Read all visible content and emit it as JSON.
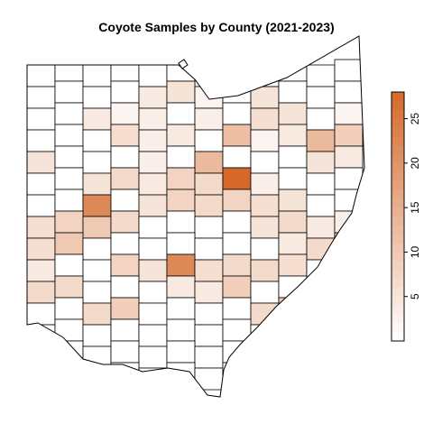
{
  "title": "Coyote Samples by County (2021-2023)",
  "legend": {
    "min": 0,
    "max": 28,
    "ticks": [
      5,
      10,
      15,
      20,
      25
    ],
    "tick_labels": [
      "5",
      "10",
      "15",
      "20",
      "25"
    ],
    "color_low": "#ffffff",
    "color_high": "#d4692a"
  },
  "counties": [
    {
      "value": 0
    },
    {
      "value": 0
    },
    {
      "value": 0
    },
    {
      "value": 0
    },
    {
      "value": 0
    },
    {
      "value": 0
    },
    {
      "value": 0
    },
    {
      "value": 0
    },
    {
      "value": 0
    },
    {
      "value": 0
    },
    {
      "value": 0
    },
    {
      "value": 0
    },
    {
      "value": 0
    },
    {
      "value": 0
    },
    {
      "value": 0
    },
    {
      "value": 0
    },
    {
      "value": 4
    },
    {
      "value": 5
    },
    {
      "value": 2
    },
    {
      "value": 0
    },
    {
      "value": 5
    },
    {
      "value": 0
    },
    {
      "value": 0
    },
    {
      "value": 0
    },
    {
      "value": 0
    },
    {
      "value": 0
    },
    {
      "value": 4
    },
    {
      "value": 2
    },
    {
      "value": 3
    },
    {
      "value": 0
    },
    {
      "value": 3
    },
    {
      "value": 0
    },
    {
      "value": 6
    },
    {
      "value": 5
    },
    {
      "value": 0
    },
    {
      "value": 2
    },
    {
      "value": 0
    },
    {
      "value": 0
    },
    {
      "value": 0
    },
    {
      "value": 6
    },
    {
      "value": 3
    },
    {
      "value": 4
    },
    {
      "value": 0
    },
    {
      "value": 12
    },
    {
      "value": 2
    },
    {
      "value": 4
    },
    {
      "value": 13
    },
    {
      "value": 9
    },
    {
      "value": 5
    },
    {
      "value": 0
    },
    {
      "value": 0
    },
    {
      "value": 0
    },
    {
      "value": 3
    },
    {
      "value": 0
    },
    {
      "value": 13
    },
    {
      "value": 0
    },
    {
      "value": 0
    },
    {
      "value": 0
    },
    {
      "value": 5
    },
    {
      "value": 4
    },
    {
      "value": 0
    },
    {
      "value": 0
    },
    {
      "value": 5
    },
    {
      "value": 7
    },
    {
      "value": 4
    },
    {
      "value": 8
    },
    {
      "value": 7
    },
    {
      "value": 28
    },
    {
      "value": 3
    },
    {
      "value": 0
    },
    {
      "value": 0
    },
    {
      "value": 0
    },
    {
      "value": 0
    },
    {
      "value": 0
    },
    {
      "value": 22
    },
    {
      "value": 0
    },
    {
      "value": 5
    },
    {
      "value": 8
    },
    {
      "value": 7
    },
    {
      "value": 8
    },
    {
      "value": 6
    },
    {
      "value": 5
    },
    {
      "value": 0
    },
    {
      "value": 0
    },
    {
      "value": 6
    },
    {
      "value": 8
    },
    {
      "value": 10
    },
    {
      "value": 7
    },
    {
      "value": 0
    },
    {
      "value": 0
    },
    {
      "value": 0
    },
    {
      "value": 0
    },
    {
      "value": 5
    },
    {
      "value": 7
    },
    {
      "value": 4
    },
    {
      "value": 3
    },
    {
      "value": 6
    },
    {
      "value": 10
    },
    {
      "value": 0
    },
    {
      "value": 0
    },
    {
      "value": 0
    },
    {
      "value": 0
    },
    {
      "value": 0
    },
    {
      "value": 0
    },
    {
      "value": 0
    },
    {
      "value": 4
    },
    {
      "value": 7
    },
    {
      "value": 10
    },
    {
      "value": 4
    },
    {
      "value": 0
    },
    {
      "value": 0
    },
    {
      "value": 8
    },
    {
      "value": 5
    },
    {
      "value": 22
    },
    {
      "value": 6
    },
    {
      "value": 7
    },
    {
      "value": 7
    },
    {
      "value": 6
    },
    {
      "value": 0
    },
    {
      "value": 0
    },
    {
      "value": 7
    },
    {
      "value": 7
    },
    {
      "value": 0
    },
    {
      "value": 0
    },
    {
      "value": 0
    },
    {
      "value": 4
    },
    {
      "value": 4
    },
    {
      "value": 9
    },
    {
      "value": 0
    },
    {
      "value": 0
    },
    {
      "value": 0
    },
    {
      "value": 0
    },
    {
      "value": 0
    },
    {
      "value": 0
    },
    {
      "value": 7
    },
    {
      "value": 9
    },
    {
      "value": 0
    },
    {
      "value": 0
    },
    {
      "value": 0
    },
    {
      "value": 0
    },
    {
      "value": 7
    },
    {
      "value": 9
    },
    {
      "value": 0
    },
    {
      "value": 0
    },
    {
      "value": 0
    },
    {
      "value": 0
    },
    {
      "value": 0
    },
    {
      "value": 0
    },
    {
      "value": 0
    },
    {
      "value": 0
    },
    {
      "value": 0
    },
    {
      "value": 0
    },
    {
      "value": 0
    },
    {
      "value": 0
    },
    {
      "value": 0
    },
    {
      "value": 0
    },
    {
      "value": 0
    },
    {
      "value": 0
    },
    {
      "value": 0
    },
    {
      "value": 0
    },
    {
      "value": 0
    },
    {
      "value": 0
    },
    {
      "value": 0
    },
    {
      "value": 0
    },
    {
      "value": 0
    },
    {
      "value": 0
    },
    {
      "value": 0
    },
    {
      "value": 0
    },
    {
      "value": 0
    },
    {
      "value": 0
    },
    {
      "value": 0
    },
    {
      "value": 0
    },
    {
      "value": 0
    },
    {
      "value": 0
    },
    {
      "value": 0
    },
    {
      "value": 0
    },
    {
      "value": 0
    },
    {
      "value": 0
    },
    {
      "value": 0
    },
    {
      "value": 0
    }
  ]
}
